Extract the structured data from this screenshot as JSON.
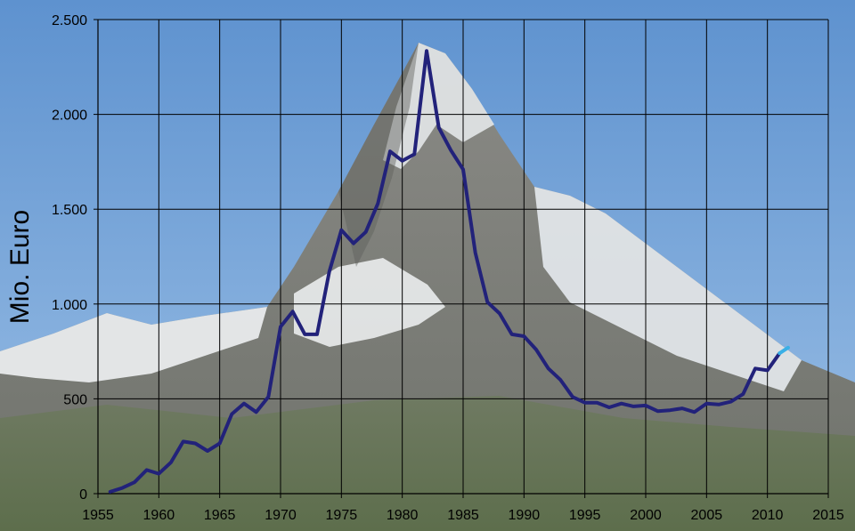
{
  "chart_data": {
    "type": "line",
    "title": "",
    "xlabel": "",
    "ylabel": "Mio. Euro",
    "xlim": [
      1955,
      2015
    ],
    "ylim": [
      0,
      2500
    ],
    "x_ticks": [
      1955,
      1960,
      1965,
      1970,
      1975,
      1980,
      1985,
      1990,
      1995,
      2000,
      2005,
      2010,
      2015
    ],
    "x_tick_labels": [
      "1955",
      "1960",
      "1965",
      "1970",
      "1975",
      "1980",
      "1985",
      "1990",
      "1995",
      "2000",
      "2005",
      "2010",
      "2015"
    ],
    "y_ticks": [
      0,
      500,
      1000,
      1500,
      2000,
      2500
    ],
    "y_tick_labels": [
      "0",
      "500",
      "1.000",
      "1.500",
      "2.000",
      "2.500"
    ],
    "grid": true,
    "legend": "none",
    "background": "photo of the Matterhorn mountain",
    "series": [
      {
        "color": "#22227a",
        "x": [
          1956,
          1957,
          1958,
          1959,
          1960,
          1961,
          1962,
          1963,
          1964,
          1965,
          1966,
          1967,
          1968,
          1969,
          1970,
          1971,
          1972,
          1973,
          1974,
          1975,
          1976,
          1977,
          1978,
          1979,
          1980,
          1981,
          1982,
          1983,
          1984,
          1985,
          1986,
          1987,
          1988,
          1989,
          1990,
          1991,
          1992,
          1993,
          1994,
          1995,
          1996,
          1997,
          1998,
          1999,
          2000,
          2001,
          2002,
          2003,
          2004,
          2005,
          2006,
          2007,
          2008,
          2009,
          2010,
          2011
        ],
        "values": [
          10,
          30,
          60,
          125,
          105,
          165,
          275,
          265,
          225,
          265,
          420,
          475,
          430,
          510,
          880,
          960,
          840,
          840,
          1170,
          1390,
          1320,
          1380,
          1530,
          1805,
          1755,
          1790,
          2335,
          1930,
          1810,
          1710,
          1270,
          1010,
          950,
          840,
          830,
          760,
          660,
          600,
          510,
          480,
          480,
          455,
          475,
          460,
          465,
          435,
          440,
          450,
          430,
          475,
          470,
          485,
          525,
          660,
          650,
          740
        ]
      },
      {
        "color": "#3ab0e6",
        "x": [
          2011,
          2011.7
        ],
        "values": [
          740,
          770
        ]
      }
    ]
  }
}
